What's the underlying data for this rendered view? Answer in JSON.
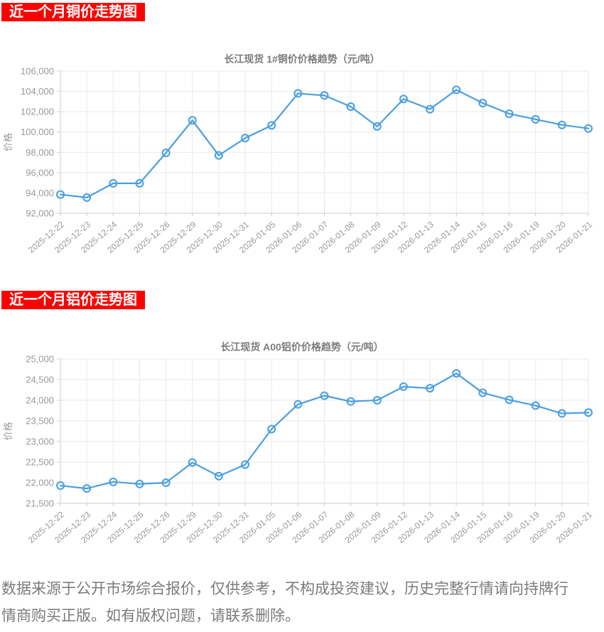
{
  "banners": {
    "copper": "近一个月铜价走势图",
    "aluminum": "近一个月铝价走势图"
  },
  "footer": {
    "line1": "数据来源于公开市场综合报价，仅供参考，不构成投资建议，历史完整行情请向持牌行",
    "line2": "情商购买正版。如有版权问题，请联系删除。"
  },
  "colors": {
    "banner_bg": "#ff0000",
    "banner_text": "#ffffff",
    "line": "#4c9fe0",
    "marker_fill": "#ecf6fd",
    "grid": "#e9e9e9",
    "axis": "#cccccc",
    "tick_text": "#999999",
    "title_text": "#7c7c7c",
    "footer_text": "#7b7b7b"
  },
  "chart_data": [
    {
      "type": "line",
      "title": "长江现货 1#铜价价格趋势（元/吨）",
      "ylabel": "价格",
      "xlabel": "",
      "legend": "none",
      "grid": true,
      "ylim": [
        92000,
        106000
      ],
      "ytick_step": 2000,
      "x": [
        "2025-12-22",
        "2025-12-23",
        "2025-12-24",
        "2025-12-25",
        "2025-12-26",
        "2025-12-29",
        "2025-12-30",
        "2025-12-31",
        "2026-01-05",
        "2026-01-06",
        "2026-01-07",
        "2026-01-08",
        "2026-01-09",
        "2026-01-12",
        "2026-01-13",
        "2026-01-14",
        "2026-01-15",
        "2026-01-16",
        "2026-01-19",
        "2026-01-20",
        "2026-01-21"
      ],
      "values": [
        93850,
        93550,
        94950,
        94950,
        97950,
        101150,
        97700,
        99400,
        100650,
        103800,
        103600,
        102500,
        100550,
        103250,
        102250,
        104150,
        102850,
        101800,
        101250,
        100700,
        100350
      ]
    },
    {
      "type": "line",
      "title": "长江现货 A00铝价价格趋势（元/吨）",
      "ylabel": "价格",
      "xlabel": "",
      "legend": "none",
      "grid": true,
      "ylim": [
        21500,
        25000
      ],
      "ytick_step": 500,
      "x": [
        "2025-12-22",
        "2025-12-23",
        "2025-12-24",
        "2025-12-25",
        "2025-12-26",
        "2025-12-29",
        "2025-12-30",
        "2025-12-31",
        "2026-01-05",
        "2026-01-06",
        "2026-01-07",
        "2026-01-08",
        "2026-01-09",
        "2026-01-12",
        "2026-01-13",
        "2026-01-14",
        "2026-01-15",
        "2026-01-16",
        "2026-01-19",
        "2026-01-20",
        "2026-01-21"
      ],
      "values": [
        21930,
        21860,
        22020,
        21970,
        22000,
        22490,
        22160,
        22440,
        23300,
        23900,
        24110,
        23970,
        24000,
        24330,
        24290,
        24650,
        24180,
        24010,
        23870,
        23680,
        23700
      ]
    }
  ]
}
